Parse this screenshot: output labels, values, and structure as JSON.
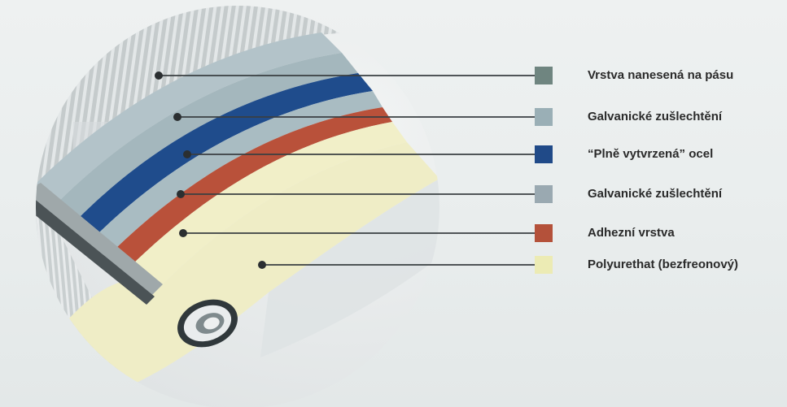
{
  "layers": [
    {
      "label": "Vrstva nanesená na pásu",
      "color": "#6f8580"
    },
    {
      "label": "Galvanické zušlechtění",
      "color": "#9aafb6"
    },
    {
      "label": "“Plně vytvrzená” ocel",
      "color": "#204a88"
    },
    {
      "label": "Galvanické zušlechtění",
      "color": "#9aa9b1"
    },
    {
      "label": "Adhezní vrstva",
      "color": "#b4513a"
    },
    {
      "label": "Polyurethat (bezfreonový)",
      "color": "#ecebb4"
    }
  ]
}
